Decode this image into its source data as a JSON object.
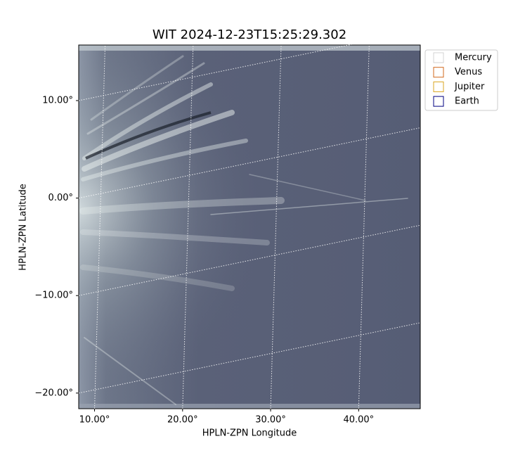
{
  "chart_data": {
    "type": "image",
    "title": "WIT 2024-12-23T15:25:29.302",
    "x_label": "HPLN-ZPN Longitude",
    "y_label": "HPLN-ZPN Latitude",
    "xlim": [
      8.2,
      47.0
    ],
    "ylim": [
      -21.6,
      15.7
    ],
    "xticks": [
      {
        "value": 10,
        "label": "10.00°"
      },
      {
        "value": 20,
        "label": "20.00°"
      },
      {
        "value": 30,
        "label": "30.00°"
      },
      {
        "value": 40,
        "label": "40.00°"
      }
    ],
    "yticks": [
      {
        "value": -20,
        "label": "−20.00°"
      },
      {
        "value": -10,
        "label": "−10.00°"
      },
      {
        "value": 0,
        "label": "0.00°"
      },
      {
        "value": 10,
        "label": "10.00°"
      }
    ],
    "grid": true,
    "legend": "upper right outside",
    "series": [
      {
        "name": "Mercury",
        "color": "#d3d3d3"
      },
      {
        "name": "Venus",
        "color": "#d2691e"
      },
      {
        "name": "Jupiter",
        "color": "#daa520"
      },
      {
        "name": "Earth",
        "color": "#000080"
      }
    ]
  }
}
